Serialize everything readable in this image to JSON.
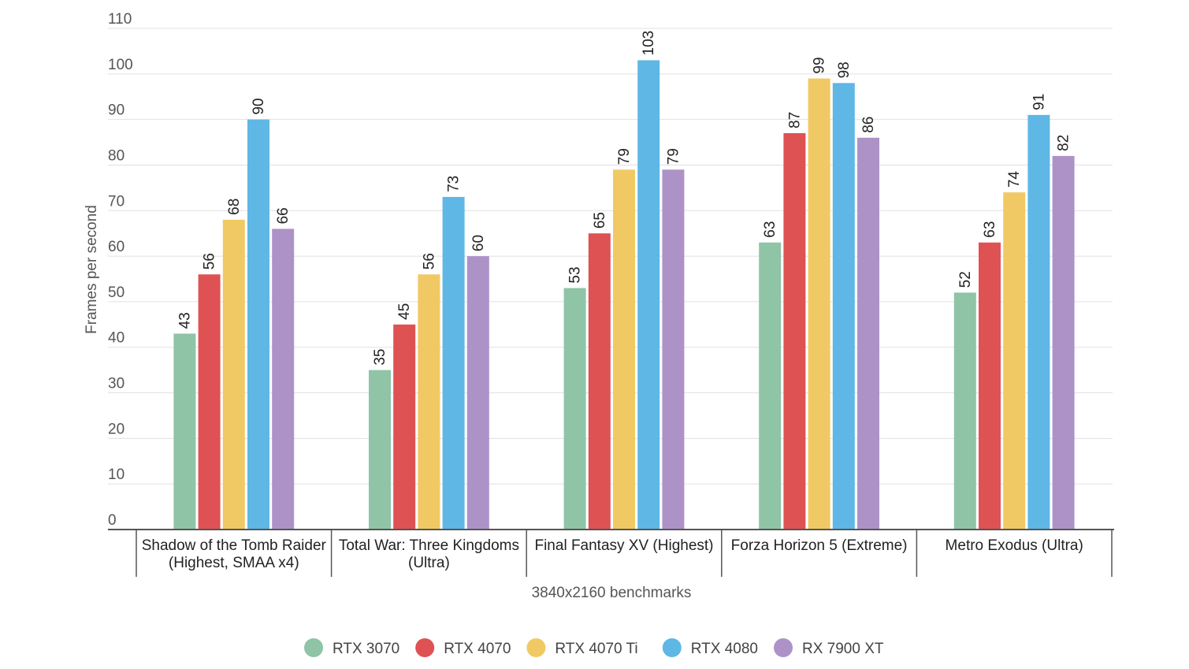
{
  "chart_data": {
    "type": "bar",
    "title": "",
    "xlabel": "3840x2160 benchmarks",
    "ylabel": "Frames per second",
    "ylim": [
      0,
      110
    ],
    "yticks": [
      0,
      10,
      20,
      30,
      40,
      50,
      60,
      70,
      80,
      90,
      100,
      110
    ],
    "grid": true,
    "legend_position": "bottom",
    "categories": [
      [
        "Shadow of the Tomb Raider",
        "(Highest, SMAA x4)"
      ],
      [
        "Total War: Three Kingdoms",
        "(Ultra)"
      ],
      [
        "Final Fantasy XV (Highest)"
      ],
      [
        "Forza Horizon 5 (Extreme)"
      ],
      [
        "Metro Exodus (Ultra)"
      ]
    ],
    "series": [
      {
        "name": "RTX 3070",
        "color": "#8fc4a6",
        "values": [
          43,
          35,
          53,
          63,
          52
        ]
      },
      {
        "name": "RTX 4070",
        "color": "#de5254",
        "values": [
          56,
          45,
          65,
          87,
          63
        ]
      },
      {
        "name": "RTX 4070 Ti",
        "color": "#f1c964",
        "values": [
          68,
          56,
          79,
          99,
          74
        ]
      },
      {
        "name": "RTX 4080",
        "color": "#5fb7e5",
        "values": [
          90,
          73,
          103,
          98,
          91
        ]
      },
      {
        "name": "RX 7900 XT",
        "color": "#ad92c7",
        "values": [
          66,
          60,
          79,
          86,
          82
        ]
      }
    ]
  }
}
